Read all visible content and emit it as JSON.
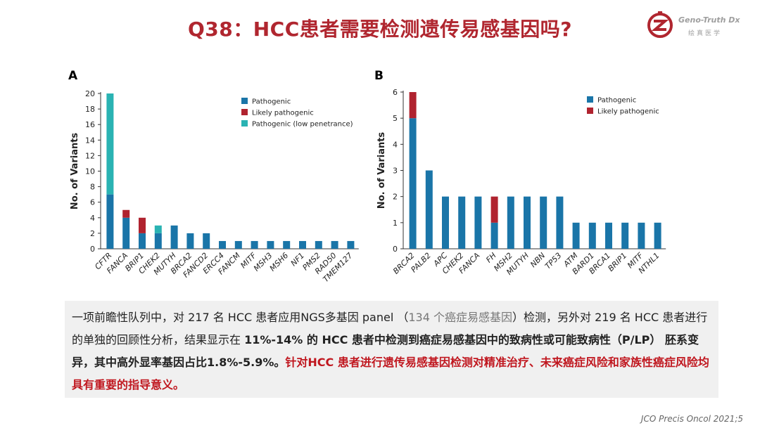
{
  "title": "Q38：HCC患者需要检测遗传易感基因吗?",
  "logo": {
    "en": "Geno-Truth Dx",
    "zh": "绘真医学",
    "mark": "GT"
  },
  "colors": {
    "pathogenic": "#1a75a8",
    "likely": "#b0232f",
    "low": "#2ab3b3",
    "title": "#b0262f"
  },
  "chart_data": [
    {
      "type": "bar",
      "panel": "A",
      "ylabel": "No. of Variants",
      "ylim": [
        0,
        20
      ],
      "yticks": [
        0,
        2,
        4,
        6,
        8,
        10,
        12,
        14,
        16,
        18,
        20
      ],
      "categories": [
        "CFTR",
        "FANCA",
        "BRIP1",
        "CHEK2",
        "MUTYH",
        "BRCA2",
        "FANCD2",
        "ERCC4",
        "FANCM",
        "MITF",
        "MSH3",
        "MSH6",
        "NF1",
        "PMS2",
        "RAD50",
        "TMEM127"
      ],
      "series": [
        {
          "name": "Pathogenic",
          "color": "#1a75a8",
          "values": [
            7,
            4,
            2,
            2,
            3,
            2,
            2,
            1,
            1,
            1,
            1,
            1,
            1,
            1,
            1,
            1
          ]
        },
        {
          "name": "Likely pathogenic",
          "color": "#b0232f",
          "values": [
            0,
            1,
            2,
            0,
            0,
            0,
            0,
            0,
            0,
            0,
            0,
            0,
            0,
            0,
            0,
            0
          ]
        },
        {
          "name": "Pathogenic (low penetrance)",
          "color": "#2ab3b3",
          "values": [
            13,
            0,
            0,
            1,
            0,
            0,
            0,
            0,
            0,
            0,
            0,
            0,
            0,
            0,
            0,
            0
          ]
        }
      ]
    },
    {
      "type": "bar",
      "panel": "B",
      "ylabel": "No. of Variants",
      "ylim": [
        0,
        6
      ],
      "yticks": [
        0,
        1,
        2,
        3,
        4,
        5,
        6
      ],
      "categories": [
        "BRCA2",
        "PALB2",
        "APC",
        "CHEK2",
        "FANCA",
        "FH",
        "MSH2",
        "MUTYH",
        "NBN",
        "TP53",
        "ATM",
        "BARD1",
        "BRCA1",
        "BRIP1",
        "MITF",
        "NTHL1"
      ],
      "series": [
        {
          "name": "Pathogenic",
          "color": "#1a75a8",
          "values": [
            5,
            3,
            2,
            2,
            2,
            1,
            2,
            2,
            2,
            2,
            1,
            1,
            1,
            1,
            1,
            1
          ]
        },
        {
          "name": "Likely pathogenic",
          "color": "#b0232f",
          "values": [
            1,
            0,
            0,
            0,
            0,
            1,
            0,
            0,
            0,
            0,
            0,
            0,
            0,
            0,
            0,
            0
          ]
        }
      ]
    }
  ],
  "body": {
    "p1": "一项前瞻性队列中，对 217 名 HCC 患者应用NGS多基因 panel （",
    "p2": "134 个癌症易感基因",
    "p3": "）检测，另外对 219 名 HCC 患者进行的单独的回顾性分析，结果显示在 ",
    "p4": "11%-14% 的 HCC 患者中检测到癌症易感基因中的致病性或可能致病性（P/LP） 胚系变异，其中高外显率基因占比1.8%-5.9%。",
    "p5": "针对HCC 患者进行遗传易感基因检测对精准治疗、未来癌症风险和家族性癌症风险均具有重要的指导意义。"
  },
  "citation": "JCO Precis Oncol 2021;5"
}
